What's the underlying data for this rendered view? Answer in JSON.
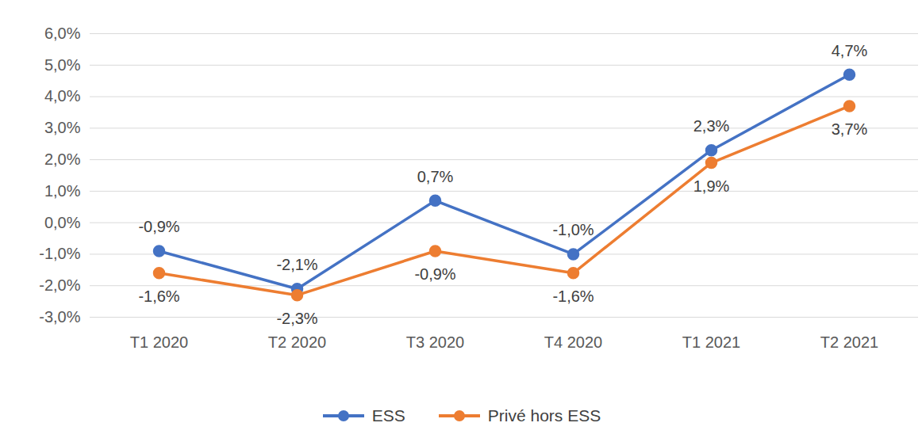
{
  "chart_data": {
    "type": "line",
    "categories": [
      "T1 2020",
      "T2 2020",
      "T3 2020",
      "T4 2020",
      "T1 2021",
      "T2 2021"
    ],
    "series": [
      {
        "name": "ESS",
        "color": "#4472c4",
        "marker": "circle",
        "values": [
          -0.9,
          -2.1,
          0.7,
          -1.0,
          2.3,
          4.7
        ],
        "value_labels": [
          "-0,9%",
          "-2,1%",
          "0,7%",
          "-1,0%",
          "2,3%",
          "4,7%"
        ]
      },
      {
        "name": "Privé hors ESS",
        "color": "#ed7d31",
        "marker": "circle",
        "values": [
          -1.6,
          -2.3,
          -0.9,
          -1.6,
          1.9,
          3.7
        ],
        "value_labels": [
          "-1,6%",
          "-2,3%",
          "-0,9%",
          "-1,6%",
          "1,9%",
          "3,7%"
        ]
      }
    ],
    "ylim": [
      -3,
      6
    ],
    "yticks": [
      {
        "value": -3,
        "label": "-3,0%"
      },
      {
        "value": -2,
        "label": "-2,0%"
      },
      {
        "value": -1,
        "label": "-1,0%"
      },
      {
        "value": 0,
        "label": "0,0%"
      },
      {
        "value": 1,
        "label": "1,0%"
      },
      {
        "value": 2,
        "label": "2,0%"
      },
      {
        "value": 3,
        "label": "3,0%"
      },
      {
        "value": 4,
        "label": "4,0%"
      },
      {
        "value": 5,
        "label": "5,0%"
      },
      {
        "value": 6,
        "label": "6,0%"
      }
    ],
    "grid": true,
    "data_labels": true,
    "legend": "bottom"
  }
}
